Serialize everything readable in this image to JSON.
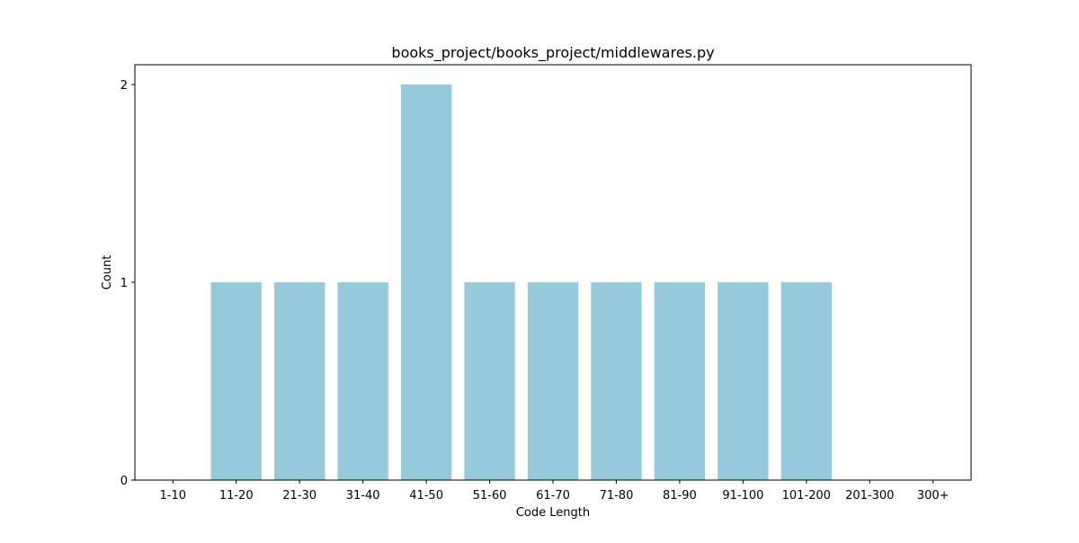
{
  "chart_data": {
    "type": "bar",
    "title": "books_project/books_project/middlewares.py",
    "xlabel": "Code Length",
    "ylabel": "Count",
    "categories": [
      "1-10",
      "11-20",
      "21-30",
      "31-40",
      "41-50",
      "51-60",
      "61-70",
      "71-80",
      "81-90",
      "91-100",
      "101-200",
      "201-300",
      "300+"
    ],
    "values": [
      0,
      1,
      1,
      1,
      2,
      1,
      1,
      1,
      1,
      1,
      1,
      0,
      0
    ],
    "ylim": [
      0,
      2.1
    ],
    "yticks": [
      0,
      1,
      2
    ],
    "grid": false,
    "bar_color": "#96c9dc"
  }
}
